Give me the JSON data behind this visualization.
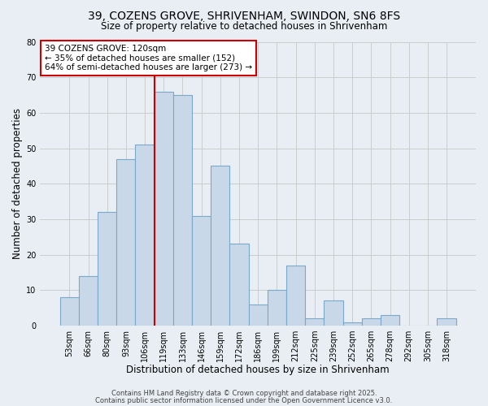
{
  "title": "39, COZENS GROVE, SHRIVENHAM, SWINDON, SN6 8FS",
  "subtitle": "Size of property relative to detached houses in Shrivenham",
  "xlabel": "Distribution of detached houses by size in Shrivenham",
  "ylabel": "Number of detached properties",
  "bar_labels": [
    "53sqm",
    "66sqm",
    "80sqm",
    "93sqm",
    "106sqm",
    "119sqm",
    "133sqm",
    "146sqm",
    "159sqm",
    "172sqm",
    "186sqm",
    "199sqm",
    "212sqm",
    "225sqm",
    "239sqm",
    "252sqm",
    "265sqm",
    "278sqm",
    "292sqm",
    "305sqm",
    "318sqm"
  ],
  "bar_values": [
    8,
    14,
    32,
    47,
    51,
    66,
    65,
    31,
    45,
    23,
    6,
    10,
    17,
    2,
    7,
    1,
    2,
    3,
    0,
    0,
    2
  ],
  "bar_color": "#c8d8e8",
  "bar_edge_color": "#7aa8c8",
  "vline_color": "#cc0000",
  "vline_index": 5,
  "annotation_text": "39 COZENS GROVE: 120sqm\n← 35% of detached houses are smaller (152)\n64% of semi-detached houses are larger (273) →",
  "annotation_box_color": "white",
  "annotation_box_edgecolor": "#cc0000",
  "ylim": [
    0,
    80
  ],
  "yticks": [
    0,
    10,
    20,
    30,
    40,
    50,
    60,
    70,
    80
  ],
  "bg_color": "#e8eef4",
  "plot_bg_color": "#e8eef4",
  "grid_color": "#cccccc",
  "footer1": "Contains HM Land Registry data © Crown copyright and database right 2025.",
  "footer2": "Contains public sector information licensed under the Open Government Licence v3.0.",
  "title_fontsize": 10,
  "subtitle_fontsize": 8.5,
  "tick_fontsize": 7,
  "label_fontsize": 8.5,
  "ann_fontsize": 7.5,
  "footer_fontsize": 6
}
